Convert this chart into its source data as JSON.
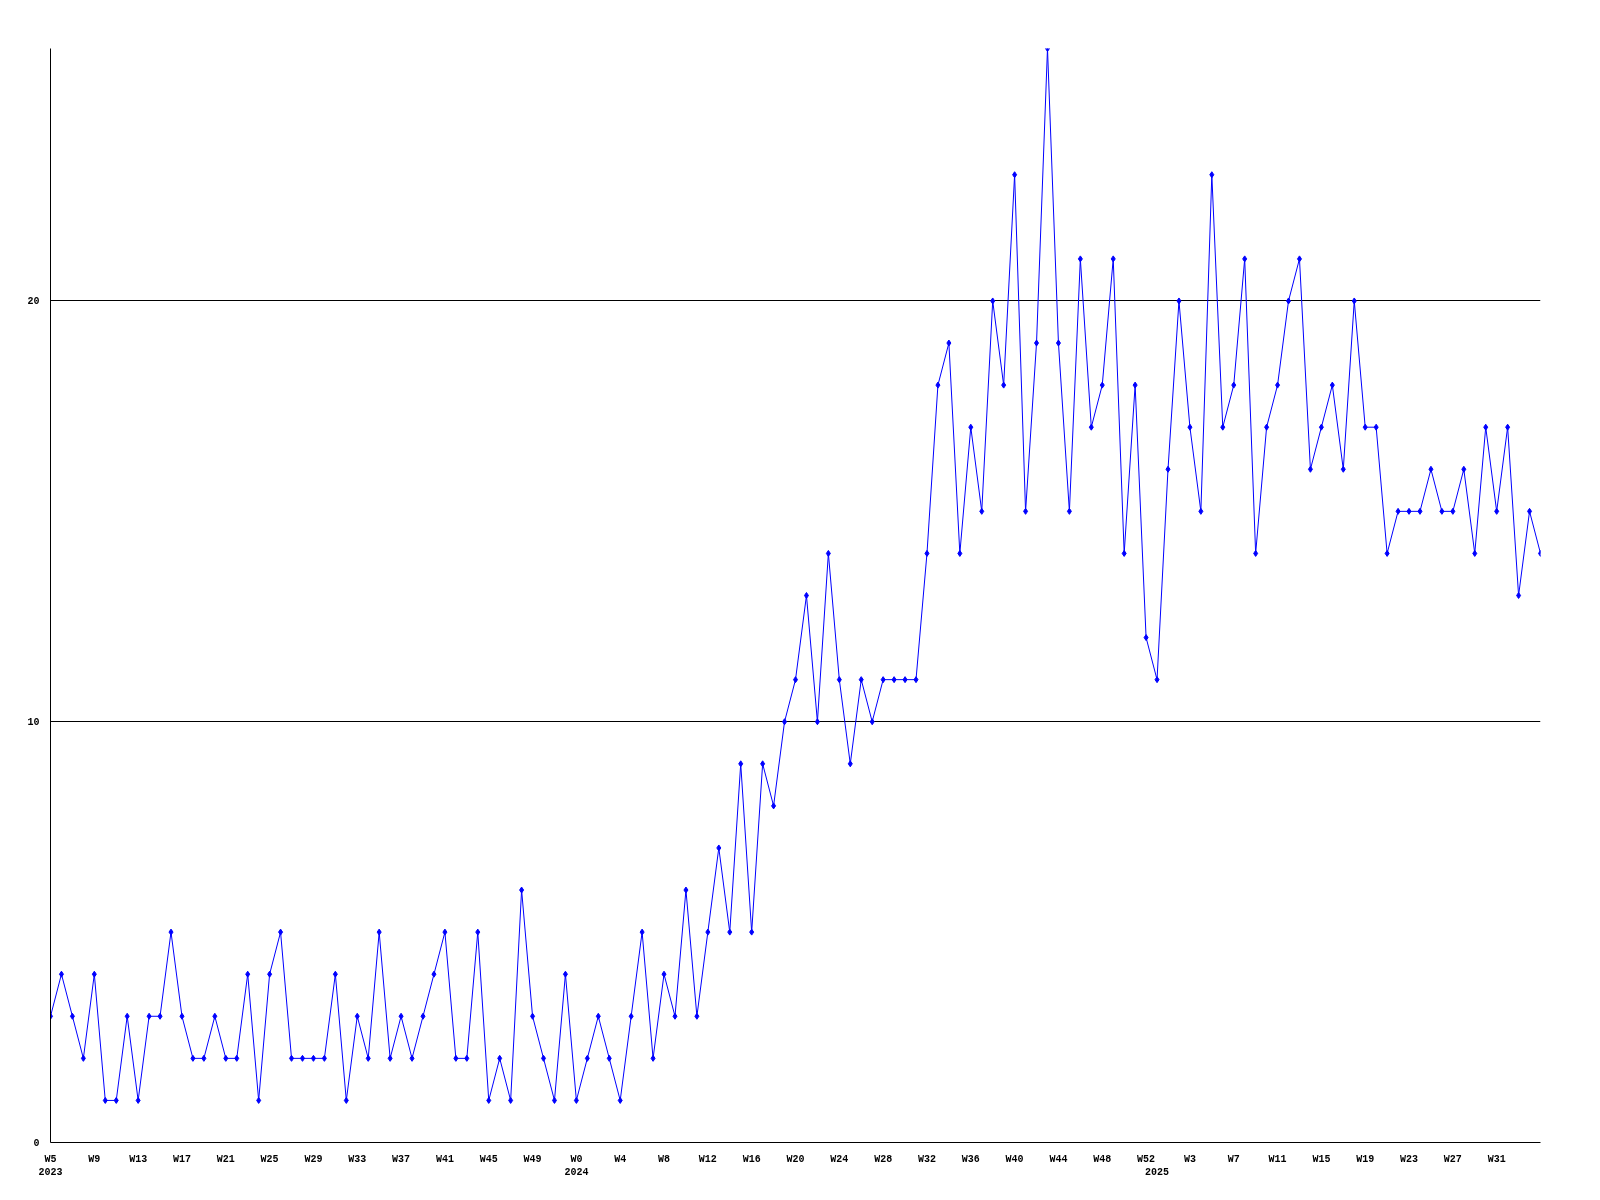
{
  "chart_data": {
    "type": "line",
    "color": "#0000ff",
    "marker": "diamond",
    "line_style": "solid",
    "grid": "y",
    "ylim": [
      0,
      26
    ],
    "yticks": [
      0,
      10,
      20
    ],
    "categories": [
      "W5\n2023",
      null,
      null,
      null,
      "W9",
      null,
      null,
      null,
      "W13",
      null,
      null,
      null,
      "W17",
      null,
      null,
      null,
      "W21",
      null,
      null,
      null,
      "W25",
      null,
      null,
      null,
      "W29",
      null,
      null,
      null,
      "W33",
      null,
      null,
      null,
      "W37",
      null,
      null,
      null,
      "W41",
      null,
      null,
      null,
      "W45",
      null,
      null,
      null,
      "W49",
      null,
      null,
      null,
      "W0\n2024",
      null,
      null,
      null,
      "W4",
      null,
      null,
      null,
      "W8",
      null,
      null,
      null,
      "W12",
      null,
      null,
      null,
      "W16",
      null,
      null,
      null,
      "W20",
      null,
      null,
      null,
      "W24",
      null,
      null,
      null,
      "W28",
      null,
      null,
      null,
      "W32",
      null,
      null,
      null,
      "W36",
      null,
      null,
      null,
      "W40",
      null,
      null,
      null,
      "W44",
      null,
      null,
      null,
      "W48",
      null,
      null,
      null,
      "W52",
      "\n2025",
      null,
      null,
      "W3",
      null,
      null,
      null,
      "W7",
      null,
      null,
      null,
      "W11",
      null,
      null,
      null,
      "W15",
      null,
      null,
      null,
      "W19",
      null,
      null,
      null,
      "W23",
      null,
      null,
      null,
      "W27",
      null,
      null,
      null,
      "W31",
      null,
      null,
      null,
      null
    ],
    "values": [
      3,
      4,
      3,
      2,
      4,
      1,
      1,
      3,
      1,
      3,
      3,
      5,
      3,
      2,
      2,
      3,
      2,
      2,
      4,
      1,
      4,
      5,
      2,
      2,
      2,
      2,
      4,
      1,
      3,
      2,
      5,
      2,
      3,
      2,
      3,
      4,
      5,
      2,
      2,
      5,
      1,
      2,
      1,
      6,
      3,
      2,
      1,
      4,
      1,
      2,
      3,
      2,
      1,
      3,
      5,
      2,
      4,
      3,
      6,
      3,
      5,
      7,
      5,
      9,
      5,
      9,
      8,
      10,
      11,
      13,
      10,
      14,
      11,
      9,
      11,
      10,
      11,
      11,
      11,
      11,
      14,
      18,
      19,
      14,
      17,
      15,
      20,
      18,
      23,
      15,
      19,
      26,
      19,
      15,
      21,
      17,
      18,
      21,
      14,
      18,
      12,
      11,
      16,
      20,
      17,
      15,
      23,
      17,
      18,
      21,
      14,
      17,
      18,
      20,
      21,
      16,
      17,
      18,
      16,
      20,
      17,
      17,
      14,
      15,
      15,
      15,
      16,
      15,
      15,
      16,
      14,
      17,
      15,
      17,
      13,
      15,
      14
    ]
  }
}
